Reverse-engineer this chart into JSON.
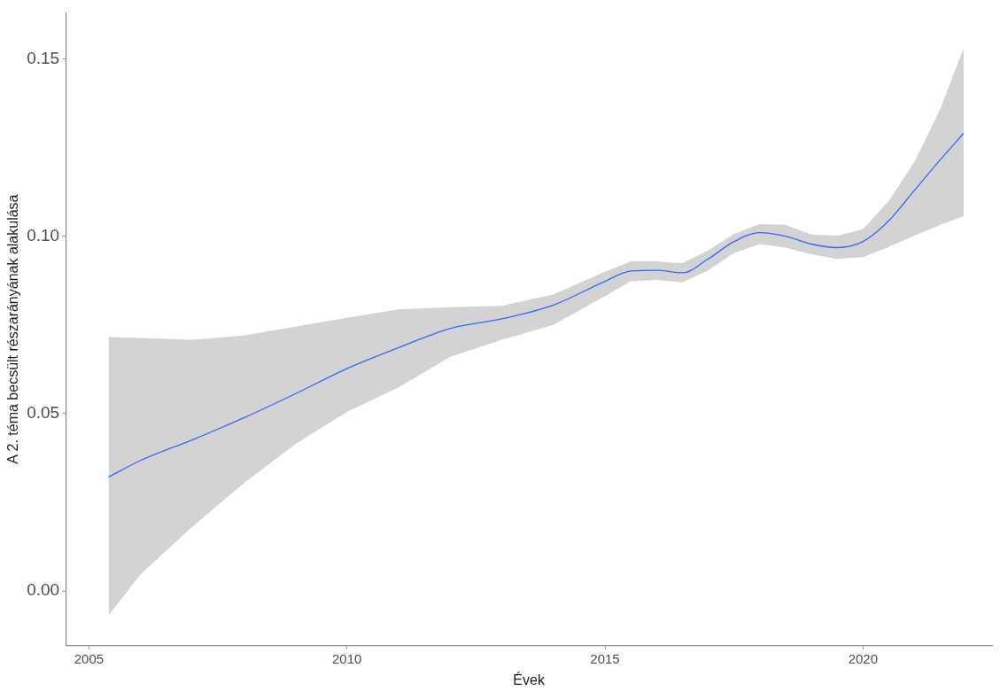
{
  "chart_data": {
    "type": "line",
    "xlabel": "Évek",
    "ylabel": "A 2. téma becsült részarányának alakulása",
    "xlim": [
      2004.55,
      2022.5
    ],
    "ylim": [
      -0.0154,
      0.163
    ],
    "xticks": [
      2005,
      2010,
      2015,
      2020
    ],
    "yticks": [
      {
        "value": 0,
        "label": "0.00"
      },
      {
        "value": 0.05,
        "label": "0.05"
      },
      {
        "value": 0.1,
        "label": "0.10"
      },
      {
        "value": 0.15,
        "label": "0.15"
      }
    ],
    "grid": false,
    "legend": false,
    "marker": "none",
    "line_style": "solid",
    "x": [
      2005.38,
      2006,
      2007,
      2008,
      2009,
      2010,
      2011,
      2012,
      2013,
      2014,
      2015,
      2015.5,
      2016,
      2016.5,
      2017,
      2017.5,
      2018,
      2018.5,
      2019,
      2019.5,
      2020,
      2020.5,
      2021,
      2021.5,
      2021.95
    ],
    "series": [
      {
        "color": "#3366ff",
        "values": [
          0.0321,
          0.0368,
          0.0426,
          0.0488,
          0.0556,
          0.0627,
          0.0686,
          0.074,
          0.0767,
          0.0806,
          0.0873,
          0.0902,
          0.0904,
          0.0897,
          0.0936,
          0.0985,
          0.101,
          0.1,
          0.0978,
          0.0968,
          0.0985,
          0.1044,
          0.113,
          0.1216,
          0.129
        ],
        "upper": [
          0.0716,
          0.0713,
          0.0708,
          0.072,
          0.0745,
          0.077,
          0.0794,
          0.08,
          0.0804,
          0.0836,
          0.09,
          0.0929,
          0.0929,
          0.0924,
          0.096,
          0.1007,
          0.1034,
          0.1032,
          0.1005,
          0.1002,
          0.102,
          0.11,
          0.121,
          0.136,
          0.153
        ],
        "lower": [
          -0.0069,
          0.0047,
          0.0181,
          0.0304,
          0.0414,
          0.0505,
          0.0574,
          0.066,
          0.0708,
          0.075,
          0.0831,
          0.0873,
          0.0877,
          0.087,
          0.0904,
          0.0953,
          0.0978,
          0.0968,
          0.0949,
          0.0936,
          0.0941,
          0.097,
          0.1002,
          0.1032,
          0.1056
        ]
      }
    ]
  }
}
